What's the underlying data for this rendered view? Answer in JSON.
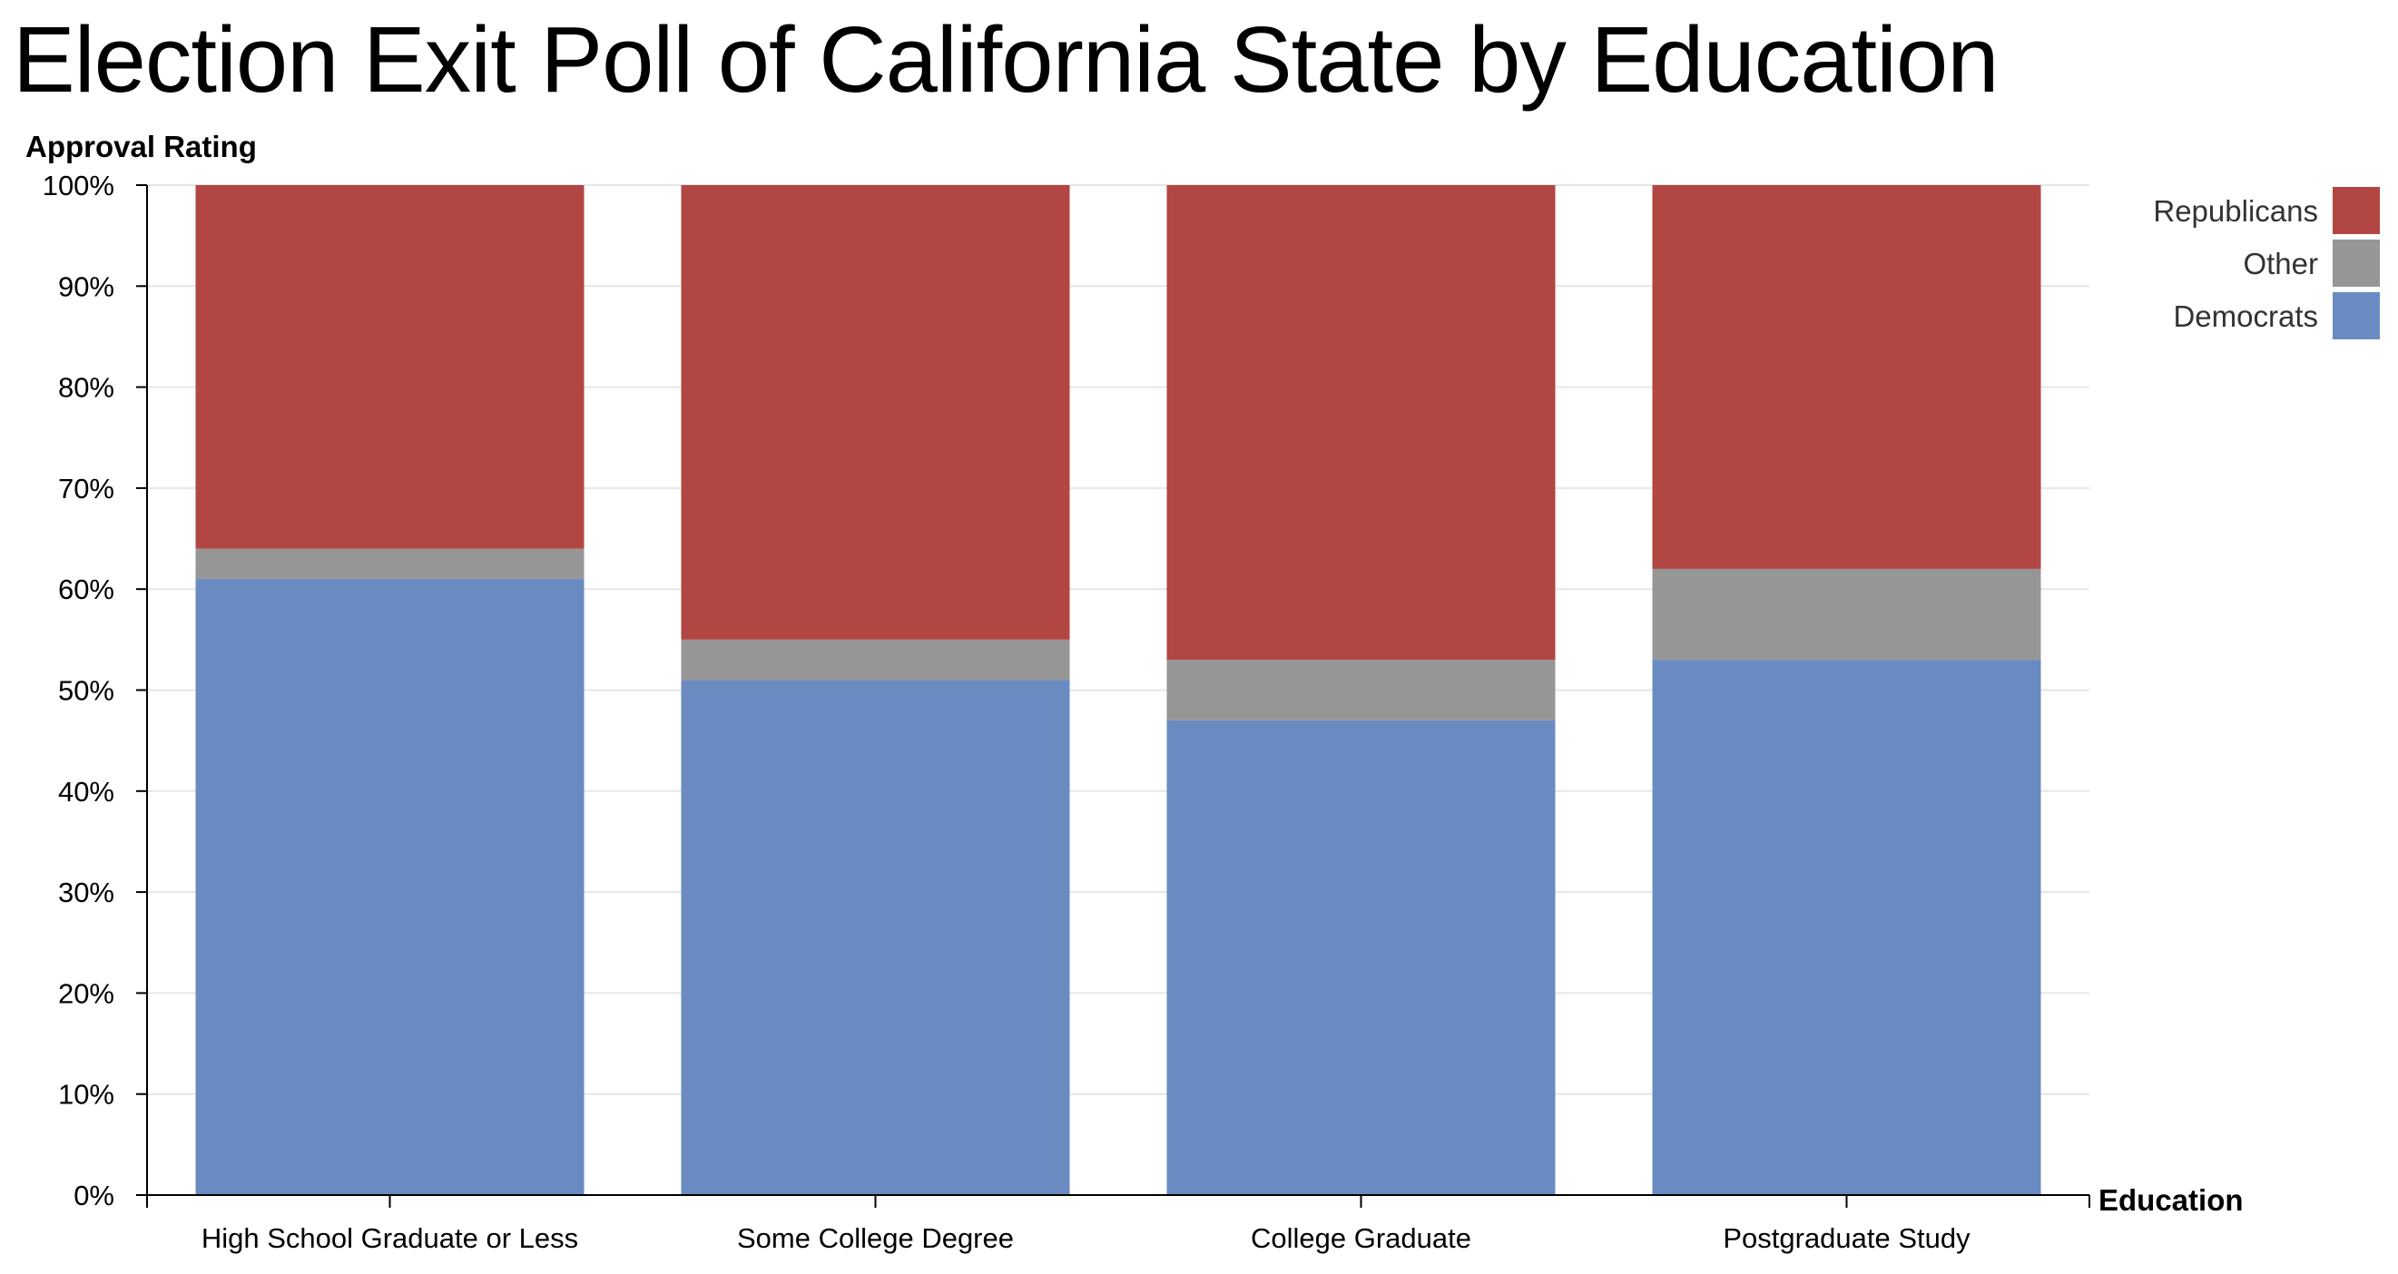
{
  "chart_data": {
    "type": "bar",
    "stacked": true,
    "title": "Election Exit Poll of California State by Education",
    "xlabel": "Education",
    "ylabel": "Approval Rating",
    "ylim": [
      0,
      100
    ],
    "yticks": [
      "0%",
      "10%",
      "20%",
      "30%",
      "40%",
      "50%",
      "60%",
      "70%",
      "80%",
      "90%",
      "100%"
    ],
    "categories": [
      "High School Graduate or Less",
      "Some College Degree",
      "College Graduate",
      "Postgraduate Study"
    ],
    "series": [
      {
        "name": "Democrats",
        "color": "#6a8bc2",
        "values": [
          61,
          51,
          47,
          53
        ]
      },
      {
        "name": "Other",
        "color": "#969696",
        "values": [
          3,
          4,
          6,
          9
        ]
      },
      {
        "name": "Republicans",
        "color": "#b24643",
        "values": [
          36,
          45,
          47,
          38
        ]
      }
    ],
    "legend": {
      "position": "top-right",
      "order": [
        "Republicans",
        "Other",
        "Democrats"
      ]
    },
    "grid": true
  }
}
